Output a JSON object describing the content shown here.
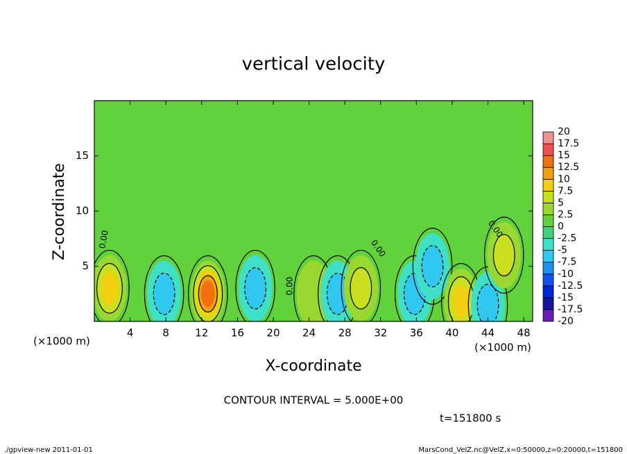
{
  "chart_data": {
    "type": "contour",
    "title": "vertical velocity",
    "x_label": "X-coordinate",
    "y_label": "Z-coordinate",
    "x_unit": "(×1000 m)",
    "y_unit": "(×1000 m)",
    "contour_interval": "CONTOUR INTERVAL = 5.000E+00",
    "time": "t=151800 s",
    "footer_left": "./gpview-new  2011-01-01",
    "footer_right": "MarsCond_VelZ.nc@VelZ,x=0:50000,z=0:20000,t=151800",
    "annotations": [
      "0.00",
      "0.00",
      "0.00",
      "0.00"
    ],
    "xlim": [
      0,
      49
    ],
    "ylim": [
      0,
      20
    ],
    "xticks": [
      4,
      8,
      12,
      16,
      20,
      24,
      28,
      32,
      36,
      40,
      44,
      48
    ],
    "yticks": [
      5,
      10,
      15
    ],
    "background_color": "#62d23c",
    "colorbar": {
      "levels": [
        -20,
        -17.5,
        -15,
        -12.5,
        -10,
        -7.5,
        -5,
        -2.5,
        0,
        2.5,
        5,
        7.5,
        10,
        12.5,
        15,
        17.5,
        20
      ],
      "colors": [
        "#6a1bb0",
        "#1414a0",
        "#0028d0",
        "#1450f0",
        "#2090f0",
        "#30c8f0",
        "#40e0c8",
        "#44d07a",
        "#62d23c",
        "#98d830",
        "#c8e020",
        "#f0d010",
        "#f0a010",
        "#f07010",
        "#f05050",
        "#f09090"
      ]
    },
    "blobs": [
      {
        "x": 1.7,
        "z": 3,
        "value": 7.5
      },
      {
        "x": 7.8,
        "z": 2.5,
        "value": -5
      },
      {
        "x": 12.7,
        "z": 2.5,
        "value": 12.5
      },
      {
        "x": 18,
        "z": 3,
        "value": -5
      },
      {
        "x": 24.5,
        "z": 2.5,
        "value": 2.5
      },
      {
        "x": 27.2,
        "z": 2.5,
        "value": -5
      },
      {
        "x": 29.8,
        "z": 3,
        "value": 5
      },
      {
        "x": 35.8,
        "z": 2.5,
        "value": -5
      },
      {
        "x": 37.8,
        "z": 5,
        "value": -5
      },
      {
        "x": 41,
        "z": 1.8,
        "value": 7.5
      },
      {
        "x": 44,
        "z": 1.5,
        "value": -5
      },
      {
        "x": 45.8,
        "z": 6,
        "value": 5
      }
    ]
  }
}
